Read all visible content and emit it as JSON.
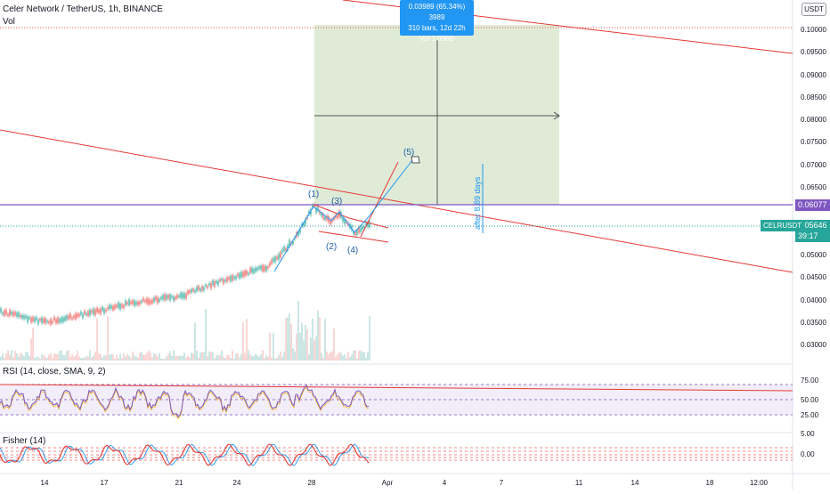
{
  "header": {
    "title": "Celer Network / TetherUS, 1h, BINANCE",
    "vol_label": "Vol",
    "currency_button": "USDT"
  },
  "tooltip": {
    "line1": "0.03989 (65.34%) 3989",
    "line2": "310 bars, 12d 22h",
    "line3": "Vol 1.096B"
  },
  "price_axis": {
    "ticks": [
      "0.10000",
      "0.09500",
      "0.09000",
      "0.08500",
      "0.08000",
      "0.07500",
      "0.07000",
      "0.06500",
      "0.05500",
      "0.05000",
      "0.04500",
      "0.04000",
      "0.03500",
      "0.03000"
    ],
    "horizontal_level": "0.06077",
    "current_price": "0.05646",
    "countdown": "39:17",
    "symbol": "CELRUSDT"
  },
  "rsi": {
    "label": "RSI (14, close, SMA, 9, 2)",
    "ticks": [
      "75.00",
      "50.00",
      "25.00"
    ]
  },
  "fisher": {
    "label": "Fisher (14)",
    "ticks": [
      "5.00",
      "0.00"
    ]
  },
  "time_axis": {
    "ticks": [
      "14",
      "17",
      "21",
      "24",
      "28",
      "Apr",
      "4",
      "7",
      "11",
      "14",
      "18",
      "12:00"
    ]
  },
  "wave_labels": [
    "(1)",
    "(2)",
    "(3)",
    "(4)",
    "(5)"
  ],
  "annotation": "after 8.89 days",
  "colors": {
    "up": "#26a69a",
    "down": "#ef5350",
    "trendline": "#e53935",
    "projection": "#2196f3",
    "level": "#7e57c2",
    "target_box": "#d9e8d0"
  }
}
